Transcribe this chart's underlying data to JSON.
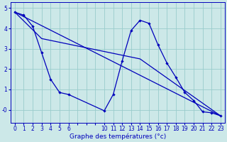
{
  "background_color": "#cce8e8",
  "grid_color": "#99cccc",
  "line_color": "#0000bb",
  "xlim": [
    -0.5,
    23.5
  ],
  "ylim": [
    -0.65,
    5.3
  ],
  "line_main_x": [
    0,
    1,
    2,
    3,
    4,
    5,
    6,
    10,
    11,
    12,
    13,
    14,
    15,
    16,
    17,
    18,
    19,
    20,
    21,
    22,
    23
  ],
  "line_main_y": [
    4.8,
    4.65,
    4.1,
    2.8,
    1.5,
    0.85,
    0.75,
    -0.05,
    0.75,
    2.4,
    3.9,
    4.4,
    4.25,
    3.2,
    2.3,
    1.6,
    0.85,
    0.45,
    -0.1,
    -0.15,
    -0.3
  ],
  "line_trend1_x": [
    0,
    23
  ],
  "line_trend1_y": [
    4.8,
    -0.3
  ],
  "line_trend2_x": [
    0,
    3,
    14,
    23
  ],
  "line_trend2_y": [
    4.8,
    3.5,
    2.5,
    -0.3
  ],
  "xticks": [
    0,
    1,
    2,
    3,
    4,
    5,
    6,
    10,
    11,
    12,
    13,
    14,
    15,
    16,
    17,
    18,
    19,
    20,
    21,
    22,
    23
  ],
  "yticks": [
    0,
    1,
    2,
    3,
    4,
    5
  ],
  "xlabel": "Graphe des températures (°c)"
}
